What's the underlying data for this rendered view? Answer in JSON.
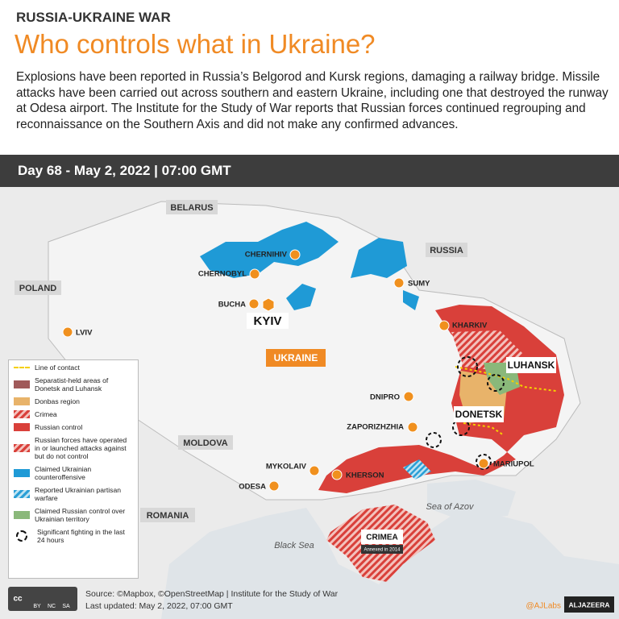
{
  "header": {
    "kicker": "RUSSIA-UKRAINE WAR",
    "title": "Who controls what in Ukraine?",
    "description": "Explosions have been reported in Russia’s Belgorod and Kursk regions, damaging a railway bridge. Missile attacks have been carried out across southern and eastern Ukraine, including one that destroyed the runway at Odesa airport. The Institute for the Study of War reports that Russian forces continued regrouping and reconnaissance on the Southern Axis and did not make any confirmed advances."
  },
  "banner": "Day 68 - May 2, 2022 | 07:00 GMT",
  "map": {
    "countries": [
      "BELARUS",
      "RUSSIA",
      "POLAND",
      "MOLDOVA",
      "ROMANIA",
      "UKRAINE"
    ],
    "cities": [
      "CHERNIHIV",
      "CHERNOBYL",
      "BUCHA",
      "KYIV",
      "SUMY",
      "KHARKIV",
      "LVIV",
      "DNIPRO",
      "ZAPORIZHZHIA",
      "MYKOLAIV",
      "ODESA",
      "KHERSON",
      "MARIUPOL"
    ],
    "regions": [
      "LUHANSK",
      "DONETSK",
      "CRIMEA"
    ],
    "seas": [
      "Black Sea",
      "Sea of Azov"
    ],
    "annotation": "Annexed in 2014"
  },
  "legend": {
    "items": [
      "Line of contact",
      "Separatist-held areas of Donetsk and Luhansk",
      "Donbas region",
      "Crimea",
      "Russian control",
      "Russian forces have operated in or launched attacks against but do not control",
      "Claimed Ukrainian counteroffensive",
      "Reported Ukrainian partisan warfare",
      "Claimed Russian control over Ukrainian territory",
      "Significant fighting in the last 24 hours"
    ]
  },
  "footer": {
    "source": "Source: ©Mapbox, ©OpenStreetMap | Institute for the Study of War",
    "updated": "Last updated: May 2, 2022, 07:00 GMT",
    "credit": "@AJLabs",
    "license": [
      "BY",
      "NC",
      "SA"
    ],
    "brand": "ALJAZEERA"
  }
}
